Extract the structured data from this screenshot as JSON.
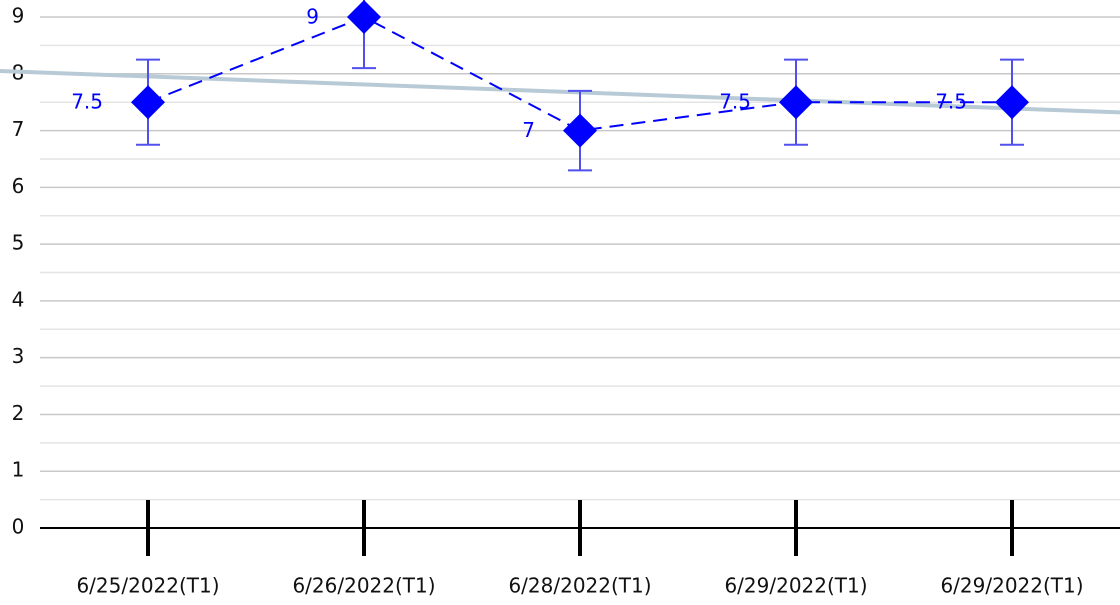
{
  "chart_data": {
    "type": "line",
    "categories": [
      "6/25/2022(T1)",
      "6/26/2022(T1)",
      "6/28/2022(T1)",
      "6/29/2022(T1)",
      "6/29/2022(T1)"
    ],
    "series": [
      {
        "color": "#0000ff",
        "error_color": "#5050ee",
        "values": [
          7.5,
          9,
          7,
          7.5,
          7.5
        ],
        "errors": [
          0.75,
          0.9,
          0.7,
          0.75,
          0.75
        ]
      }
    ],
    "trendline": {
      "color": "#b8cad6",
      "start": 8.05,
      "end": 7.32
    },
    "ylim": [
      0,
      9.3
    ],
    "yticks": [
      0,
      1,
      2,
      3,
      4,
      5,
      6,
      7,
      8,
      9
    ],
    "minor_yticks": [
      0.5,
      1.5,
      2.5,
      3.5,
      4.5,
      5.5,
      6.5,
      7.5,
      8.5
    ],
    "grid": true
  }
}
